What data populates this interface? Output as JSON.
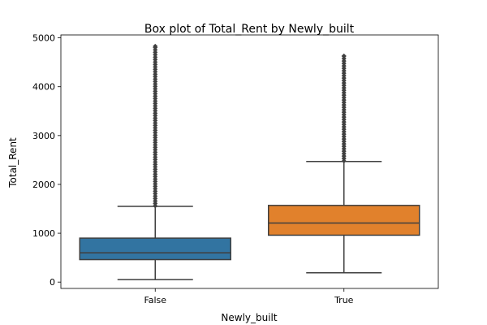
{
  "chart_data": {
    "type": "box",
    "title": "Box plot of Total_Rent by Newly_built",
    "xlabel": "Newly_built",
    "ylabel": "Total_Rent",
    "categories": [
      "False",
      "True"
    ],
    "ylim": [
      -130,
      5060
    ],
    "yticks": [
      0,
      1000,
      2000,
      3000,
      4000,
      5000
    ],
    "grid": false,
    "boxes": [
      {
        "category": "False",
        "color": "#3274a1",
        "whisker_low": 50,
        "q1": 460,
        "median": 600,
        "q3": 900,
        "whisker_high": 1550,
        "outlier_range": [
          1560,
          4830
        ]
      },
      {
        "category": "True",
        "color": "#e1812c",
        "whisker_low": 190,
        "q1": 960,
        "median": 1210,
        "q3": 1570,
        "whisker_high": 2470,
        "outlier_range": [
          2480,
          4630
        ]
      }
    ]
  }
}
